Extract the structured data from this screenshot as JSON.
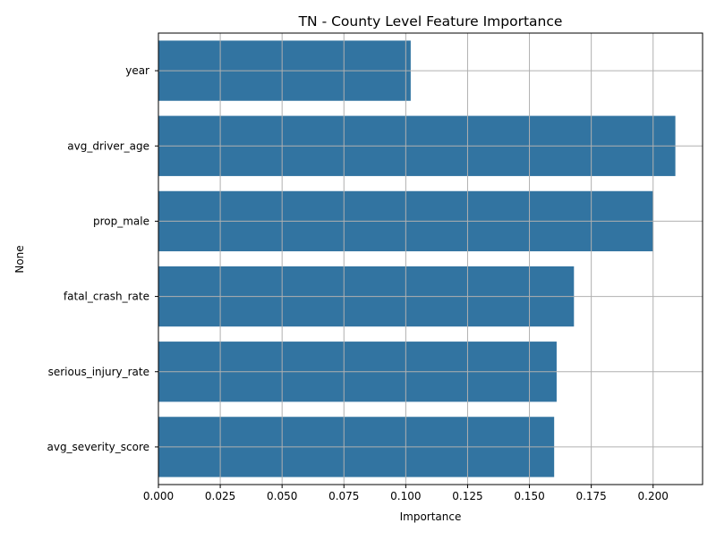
{
  "chart_data": {
    "type": "bar",
    "orientation": "horizontal",
    "title": "TN - County Level Feature Importance",
    "xlabel": "Importance",
    "ylabel": "None",
    "categories": [
      "year",
      "avg_driver_age",
      "prop_male",
      "fatal_crash_rate",
      "serious_injury_rate",
      "avg_severity_score"
    ],
    "values": [
      0.102,
      0.209,
      0.2,
      0.168,
      0.161,
      0.16
    ],
    "xlim": [
      0,
      0.22
    ],
    "xticks": [
      "0.000",
      "0.025",
      "0.050",
      "0.075",
      "0.100",
      "0.125",
      "0.150",
      "0.175",
      "0.200"
    ],
    "grid": true,
    "bar_color": "#3274a1",
    "grid_color": "#b0b0b0"
  }
}
